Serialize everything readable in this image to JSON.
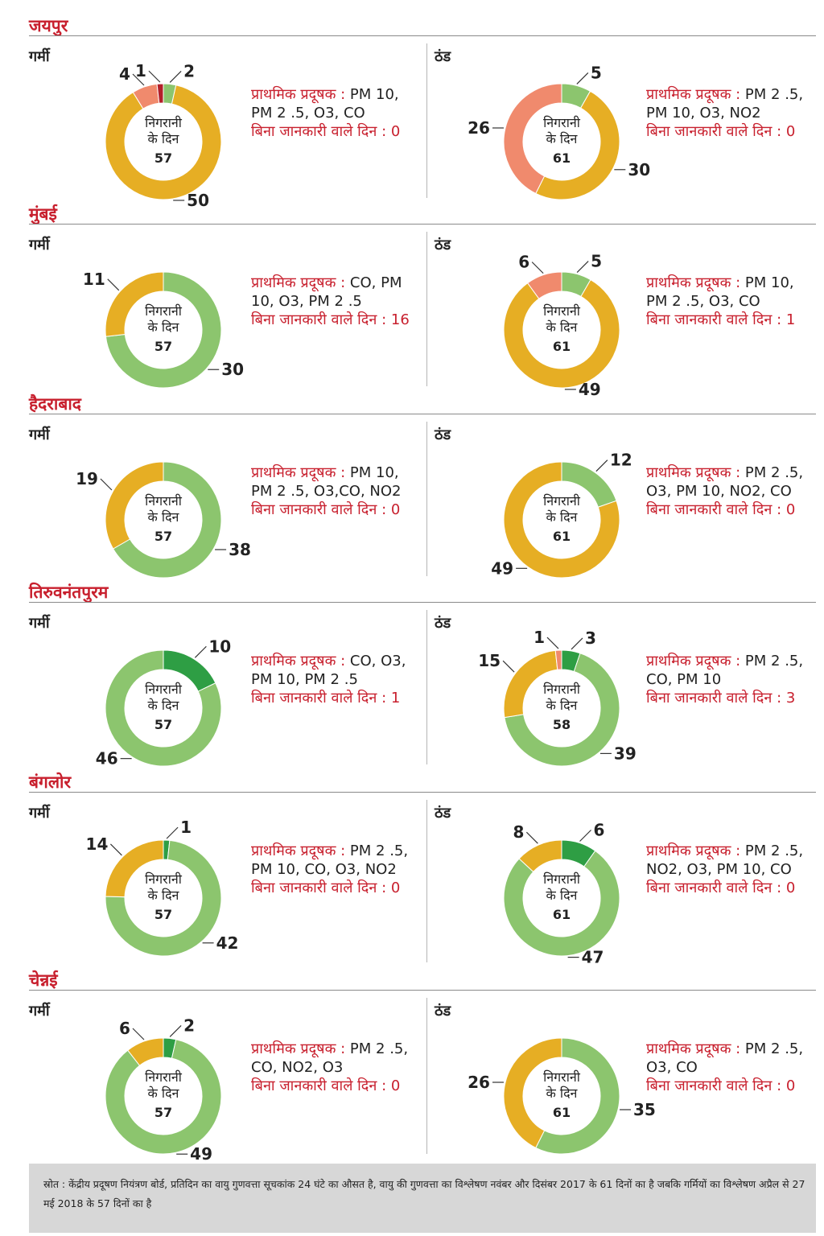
{
  "common": {
    "pollutant_label": "प्राथमिक प्रदूषक :",
    "nodata_label": "बिना जानकारी वाले दिन :",
    "center_line1": "निगरानी",
    "center_line2": "के दिन"
  },
  "colors": {
    "dark_green": "#2e9e44",
    "light_green": "#8cc56e",
    "yellow": "#e6ae24",
    "salmon": "#f08a6d",
    "red": "#b3202a",
    "heading_red": "#c8202e"
  },
  "chart_data": [
    {
      "id": "jaipur",
      "city": "जयपुर",
      "panels": [
        {
          "season": "गर्मी",
          "type": "pie",
          "total": "57",
          "pollutants": "PM 10, PM 2 .5, O3, CO",
          "nodata": "0",
          "segments": [
            {
              "value": 2,
              "color": "light_green"
            },
            {
              "value": 50,
              "color": "yellow"
            },
            {
              "value": 4,
              "color": "salmon"
            },
            {
              "value": 1,
              "color": "red"
            }
          ]
        },
        {
          "season": "ठंड",
          "type": "pie",
          "total": "61",
          "pollutants": "PM 2 .5, PM 10, O3, NO2",
          "nodata": "0",
          "segments": [
            {
              "value": 5,
              "color": "light_green"
            },
            {
              "value": 30,
              "color": "yellow"
            },
            {
              "value": 26,
              "color": "salmon"
            }
          ]
        }
      ]
    },
    {
      "id": "mumbai",
      "city": "मुंबई",
      "panels": [
        {
          "season": "गर्मी",
          "type": "pie",
          "total": "57",
          "pollutants": "CO, PM 10, O3, PM 2 .5",
          "nodata": "16",
          "segments": [
            {
              "value": 30,
              "color": "light_green"
            },
            {
              "value": 11,
              "color": "yellow"
            }
          ]
        },
        {
          "season": "ठंड",
          "type": "pie",
          "total": "61",
          "pollutants": "PM 10, PM 2 .5, O3, CO",
          "nodata": "1",
          "segments": [
            {
              "value": 5,
              "color": "light_green"
            },
            {
              "value": 49,
              "color": "yellow"
            },
            {
              "value": 6,
              "color": "salmon"
            }
          ]
        }
      ]
    },
    {
      "id": "hyderabad",
      "city": "हैदराबाद",
      "panels": [
        {
          "season": "गर्मी",
          "type": "pie",
          "total": "57",
          "pollutants": "PM 10, PM 2 .5, O3,CO, NO2",
          "nodata": "0",
          "segments": [
            {
              "value": 38,
              "color": "light_green"
            },
            {
              "value": 19,
              "color": "yellow"
            }
          ]
        },
        {
          "season": "ठंड",
          "type": "pie",
          "total": "61",
          "pollutants": "PM 2 .5, O3, PM 10, NO2, CO",
          "nodata": "0",
          "segments": [
            {
              "value": 12,
              "color": "light_green"
            },
            {
              "value": 49,
              "color": "yellow"
            }
          ]
        }
      ]
    },
    {
      "id": "thiruvananthapuram",
      "city": "तिरुवनंतपुरम",
      "panels": [
        {
          "season": "गर्मी",
          "type": "pie",
          "total": "57",
          "pollutants": "CO, O3, PM 10, PM 2 .5",
          "nodata": "1",
          "segments": [
            {
              "value": 10,
              "color": "dark_green"
            },
            {
              "value": 46,
              "color": "light_green"
            }
          ]
        },
        {
          "season": "ठंड",
          "type": "pie",
          "total": "58",
          "pollutants": "PM 2 .5, CO, PM 10",
          "nodata": "3",
          "segments": [
            {
              "value": 3,
              "color": "dark_green"
            },
            {
              "value": 39,
              "color": "light_green"
            },
            {
              "value": 15,
              "color": "yellow"
            },
            {
              "value": 1,
              "color": "salmon"
            }
          ]
        }
      ]
    },
    {
      "id": "bangalore",
      "city": "बंगलोर",
      "panels": [
        {
          "season": "गर्मी",
          "type": "pie",
          "total": "57",
          "pollutants": "PM 2 .5, PM 10, CO, O3, NO2",
          "nodata": "0",
          "segments": [
            {
              "value": 1,
              "color": "dark_green"
            },
            {
              "value": 42,
              "color": "light_green"
            },
            {
              "value": 14,
              "color": "yellow"
            }
          ]
        },
        {
          "season": "ठंड",
          "type": "pie",
          "total": "61",
          "pollutants": "PM 2 .5, NO2, O3, PM 10, CO",
          "nodata": "0",
          "segments": [
            {
              "value": 6,
              "color": "dark_green"
            },
            {
              "value": 47,
              "color": "light_green"
            },
            {
              "value": 8,
              "color": "yellow"
            }
          ]
        }
      ]
    },
    {
      "id": "chennai",
      "city": "चेन्नई",
      "panels": [
        {
          "season": "गर्मी",
          "type": "pie",
          "total": "57",
          "pollutants": "PM 2 .5, CO, NO2, O3",
          "nodata": "0",
          "segments": [
            {
              "value": 2,
              "color": "dark_green"
            },
            {
              "value": 49,
              "color": "light_green"
            },
            {
              "value": 6,
              "color": "yellow"
            }
          ]
        },
        {
          "season": "ठंड",
          "type": "pie",
          "total": "61",
          "pollutants": "PM 2 .5, O3, CO",
          "nodata": "0",
          "segments": [
            {
              "value": 35,
              "color": "light_green"
            },
            {
              "value": 26,
              "color": "yellow"
            }
          ]
        }
      ]
    }
  ],
  "footer": {
    "source": "स्रोत : केंद्रीय प्रदूषण नियंत्रण बोर्ड, प्रतिदिन का वायु गुणवत्ता सूचकांक 24 घंटे का औसत है, वायु की गुणवत्ता का विश्लेषण नवंबर और दिसंबर 2017 के 61 दिनों का है जबकि गर्मियों का विश्लेषण अप्रैल से 27 मई 2018 के 57 दिनों का है"
  }
}
